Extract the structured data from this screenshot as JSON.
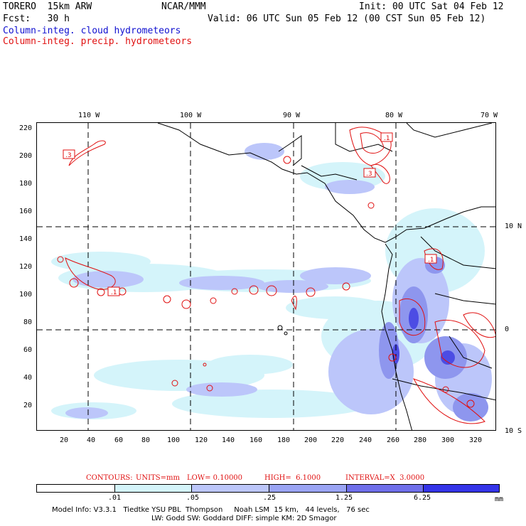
{
  "header": {
    "model": "TORERO  15km ARW",
    "org": "NCAR/MMM",
    "init": "Init: 00 UTC Sat 04 Feb 12",
    "fcst": "Fcst:   30 h",
    "valid": "Valid: 06 UTC Sun 05 Feb 12 (00 CST Sun 05 Feb 12)",
    "field_cloud": "Column-integ. cloud hydrometeors",
    "field_precip": "Column-integ. precip. hydrometeors"
  },
  "map": {
    "lon_labels": [
      "110 W",
      "100 W",
      "90 W",
      "80 W",
      "70 W"
    ],
    "lat_labels": [
      "10 N",
      "0",
      "10 S"
    ],
    "y_ticks": [
      "220",
      "200",
      "180",
      "160",
      "140",
      "120",
      "100",
      "80",
      "60",
      "40",
      "20"
    ],
    "x_ticks": [
      "20",
      "40",
      "60",
      "80",
      "100",
      "120",
      "140",
      "160",
      "180",
      "200",
      "220",
      "240",
      "260",
      "280",
      "300",
      "320"
    ],
    "contour_labels": [
      ".3",
      ".1",
      ".3",
      ".1",
      ".1"
    ]
  },
  "contours_line": {
    "label": "CONTOURS:",
    "units": "UNITS=mm",
    "low": "LOW= 0.10000",
    "high": "HIGH=  6.1000",
    "interval": "INTERVAL=X  3.0000"
  },
  "colorbar": {
    "labels": [
      ".01",
      ".05",
      ".25",
      "1.25",
      "6.25"
    ],
    "unit": "mm",
    "colors": [
      "#ffffff",
      "#d4f4fa",
      "#bcc6fa",
      "#9aa4f4",
      "#6f6fea",
      "#4c4ce4",
      "#2a2ae8"
    ]
  },
  "footer": {
    "line1": "Model Info: V3.3.1   Tiedtke YSU PBL  Thompson     Noah LSM  15 km,   44 levels,   76 sec",
    "line2": "LW: Godd SW: Goddard DIFF: simple KM: 2D Smagor"
  }
}
